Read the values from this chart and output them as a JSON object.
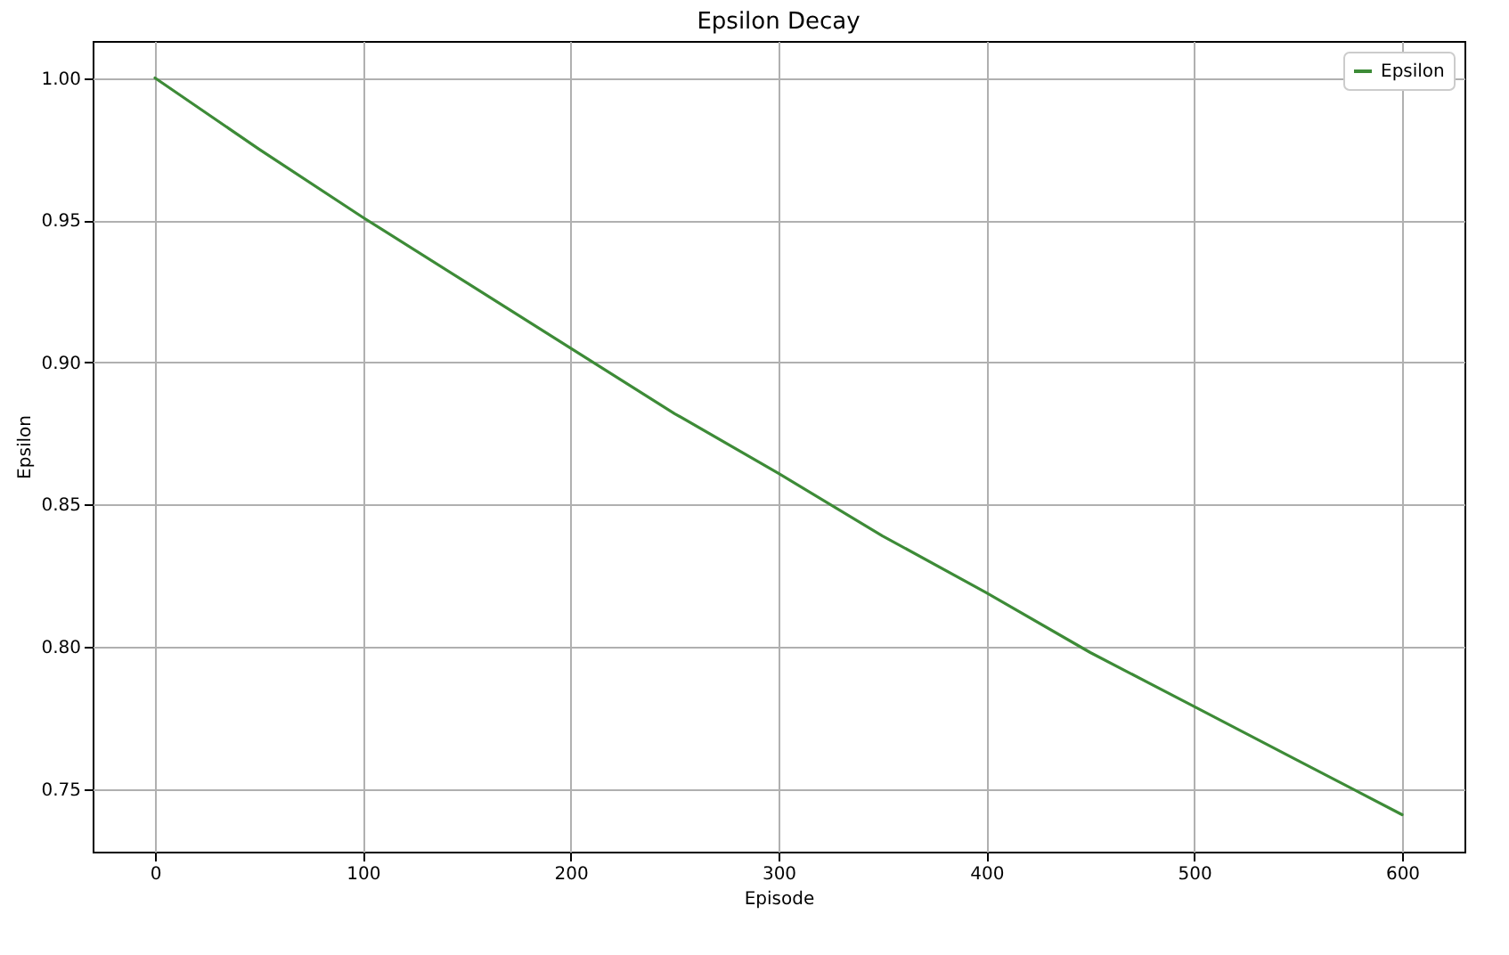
{
  "chart_data": {
    "type": "line",
    "title": "Epsilon Decay",
    "xlabel": "Episode",
    "ylabel": "Epsilon",
    "x": [
      0,
      50,
      100,
      150,
      200,
      250,
      300,
      350,
      400,
      450,
      500,
      550,
      600
    ],
    "series": [
      {
        "name": "Epsilon",
        "color": "#3d8b37",
        "values": [
          1.0,
          0.975,
          0.951,
          0.928,
          0.905,
          0.882,
          0.861,
          0.839,
          0.819,
          0.798,
          0.779,
          0.76,
          0.741
        ]
      }
    ],
    "xlim": [
      -30,
      630
    ],
    "xticks": [
      0,
      100,
      200,
      300,
      400,
      500,
      600
    ],
    "ylim": [
      0.728,
      1.013
    ],
    "yticks": [
      {
        "value": 0.75,
        "label": "0.75"
      },
      {
        "value": 0.8,
        "label": "0.80"
      },
      {
        "value": 0.85,
        "label": "0.85"
      },
      {
        "value": 0.9,
        "label": "0.90"
      },
      {
        "value": 0.95,
        "label": "0.95"
      },
      {
        "value": 1.0,
        "label": "1.00"
      }
    ],
    "grid": true,
    "legend": "top right",
    "marker": "none",
    "line_style": "solid"
  }
}
